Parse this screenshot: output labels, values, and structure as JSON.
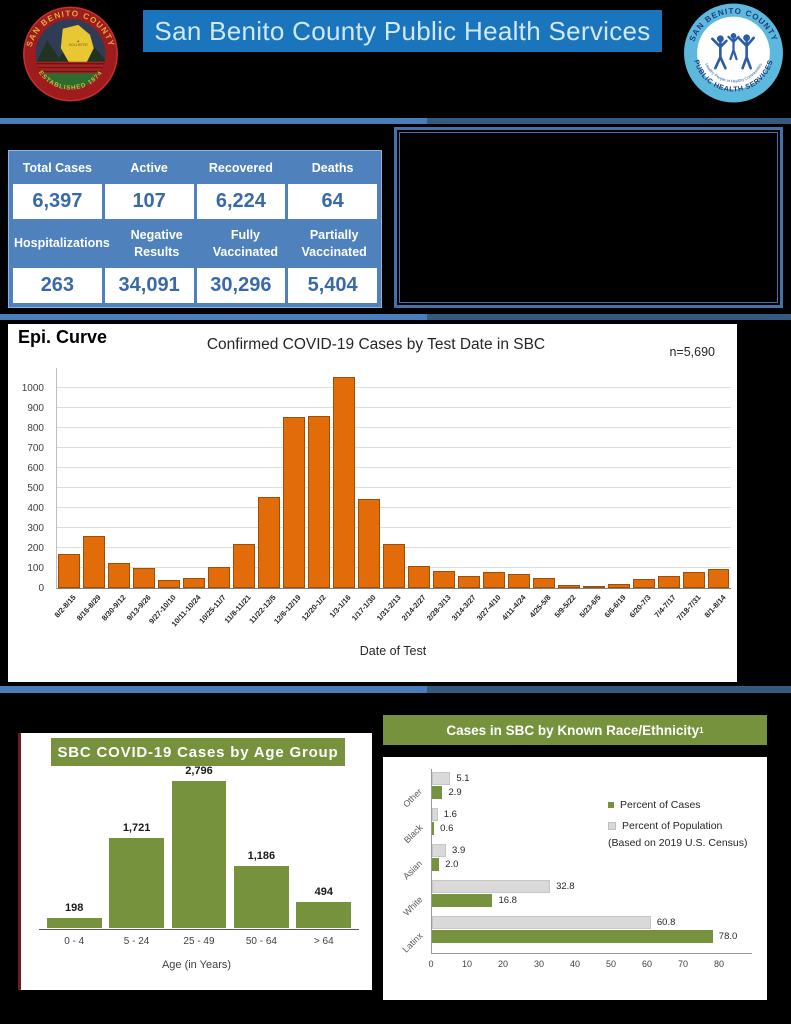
{
  "header": {
    "title": "San Benito County Public Health Services",
    "left_seal": {
      "top_text": "SAN BENITO COUNTY",
      "bottom_text": "ESTABLISHED 1874",
      "center_label": "HOLLISTER"
    },
    "right_seal": {
      "top_text": "SAN BENITO COUNTY",
      "bottom_text": "PUBLIC HEALTH SERVICES",
      "center_text": "Healthy People in Healthy Communities"
    }
  },
  "stats": {
    "rows": [
      [
        {
          "label": "Total Cases",
          "value": "6,397"
        },
        {
          "label": "Active",
          "value": "107"
        },
        {
          "label": "Recovered",
          "value": "6,224"
        },
        {
          "label": "Deaths",
          "value": "64"
        }
      ],
      [
        {
          "label": "Hospitalizations",
          "value": "263"
        },
        {
          "label": "Negative Results",
          "value": "34,091"
        },
        {
          "label": "Fully Vaccinated",
          "value": "30,296"
        },
        {
          "label": "Partially Vaccinated",
          "value": "5,404"
        }
      ]
    ]
  },
  "chart_data": [
    {
      "id": "epi_curve",
      "type": "bar",
      "section_label": "Epi. Curve",
      "title": "Confirmed COVID-19 Cases by Test Date in SBC",
      "annotation": "n=5,690",
      "xlabel": "Date of Test",
      "ylabel": "",
      "ylim": [
        0,
        1100
      ],
      "ytick_step": 100,
      "ytick_max": 1000,
      "grid": true,
      "bar_color": "#e36c0a",
      "categories": [
        "8/2-8/15",
        "8/16-8/29",
        "8/30-9/12",
        "9/13-9/26",
        "9/27-10/10",
        "10/11-10/24",
        "10/25-11/7",
        "11/8-11/21",
        "11/22-12/5",
        "12/6-12/19",
        "12/20-1/2",
        "1/3-1/16",
        "1/17-1/30",
        "1/31-2/13",
        "2/14-2/27",
        "2/28-3/13",
        "3/14-3/27",
        "3/27-4/10",
        "4/11-4/24",
        "4/25-5/8",
        "5/9-5/22",
        "5/23-6/5",
        "6/6-6/19",
        "6/20-7/3",
        "7/4-7/17",
        "7/18-7/31",
        "8/1-8/14"
      ],
      "values": [
        170,
        260,
        125,
        100,
        40,
        48,
        105,
        220,
        455,
        855,
        860,
        1055,
        445,
        220,
        110,
        85,
        60,
        78,
        72,
        48,
        15,
        5,
        18,
        45,
        60,
        80,
        95
      ]
    },
    {
      "id": "age_groups",
      "type": "bar",
      "title": "SBC COVID-19 Cases by Age Group",
      "xlabel": "Age (in Years)",
      "ylabel": "",
      "bar_color": "#76923c",
      "categories": [
        "0 - 4",
        "5 - 24",
        "25 - 49",
        "50 - 64",
        "> 64"
      ],
      "values": [
        198,
        1721,
        2796,
        1186,
        494
      ],
      "value_labels": [
        "198",
        "1,721",
        "2,796",
        "1,186",
        "494"
      ],
      "ymax": 2796
    },
    {
      "id": "race_ethnicity",
      "type": "bar-horizontal",
      "title": "Cases in SBC by Known Race/Ethnicity",
      "title_sup": "1",
      "categories": [
        "Other",
        "Black",
        "Asian",
        "White",
        "Latinx"
      ],
      "series": [
        {
          "name": "Percent of Cases",
          "color": "#76923c",
          "values": [
            2.9,
            0.6,
            2.0,
            16.8,
            78.0
          ]
        },
        {
          "name": "Percent of Population",
          "color": "#d9d9d9",
          "values": [
            5.1,
            1.6,
            3.9,
            32.8,
            60.8
          ]
        }
      ],
      "value_labels": {
        "cases": [
          "2.9",
          "0.6",
          "2.0",
          "16.8",
          "78.0"
        ],
        "population": [
          "5.1",
          "1.6",
          "3.9",
          "32.8",
          "60.8"
        ]
      },
      "legend_note": "(Based on 2019 U.S. Census)",
      "xlim": [
        0,
        85
      ],
      "xticks": [
        0,
        10,
        20,
        30,
        40,
        50,
        60,
        70,
        80
      ],
      "legend_position": "right"
    }
  ],
  "colors": {
    "banner_blue": "#1b75bc",
    "banner_text": "#cfe9f6",
    "stats_blue": "#4f81bd",
    "stats_number_blue": "#3a6aa6",
    "divider_blue_light": "#4a7ebb",
    "divider_blue_dark": "#35597f",
    "epi_orange": "#e36c0a",
    "chart_green": "#76923c",
    "population_gray": "#d9d9d9"
  }
}
